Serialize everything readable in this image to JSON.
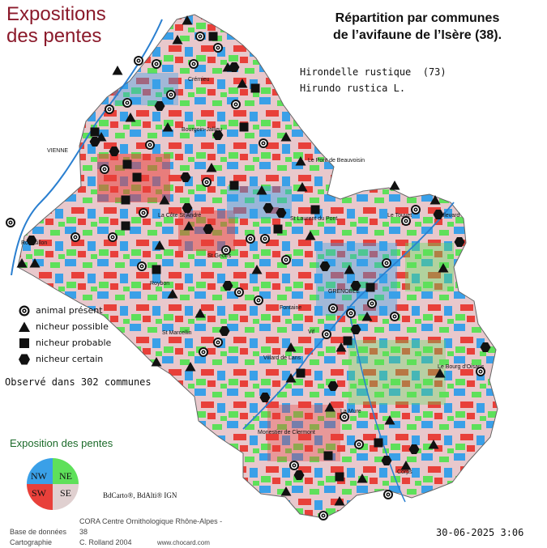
{
  "map_title": [
    "Expositions",
    "des pentes"
  ],
  "heading": [
    "Répartition par communes",
    "de l’avifaune de l’Isère (38)."
  ],
  "species": {
    "common_name": "Hirondelle rustique  (73)",
    "latin_name": "Hirundo rustica L."
  },
  "legend": [
    {
      "symbol": "circle-target",
      "label": "animal présent"
    },
    {
      "symbol": "triangle",
      "label": "nicheur possible"
    },
    {
      "symbol": "square",
      "label": "nicheur probable"
    },
    {
      "symbol": "hexagon",
      "label": "nicheur certain"
    }
  ],
  "observed": "Observé dans 302 communes",
  "slope_exposure": {
    "title": "Exposition des pentes",
    "quadrants": [
      {
        "label": "NW",
        "color": "#3aa0e8"
      },
      {
        "label": "NE",
        "color": "#5ee05a"
      },
      {
        "label": "SW",
        "color": "#e8403a"
      },
      {
        "label": "SE",
        "color": "#e0d0d0"
      }
    ]
  },
  "map_colors": {
    "blue": "#3aa0e8",
    "green": "#5ee05a",
    "red": "#e8403a",
    "pink": "#e8c8cc",
    "water": "#2a7fd0"
  },
  "credit": "BdCarto®, BdAlti® IGN",
  "footer": {
    "row1": [
      "Base de données",
      "CORA Centre Ornithologique Rhône-Alpes - 38"
    ],
    "row2": [
      "Cartographie",
      "C. Rolland 2004",
      "www.chocard.com"
    ]
  },
  "date": "30-06-2025 3:06",
  "towns": [
    "VIENNE",
    "Le Pont de Beauvoisin",
    "St Laurent du Pont",
    "Le Touvet",
    "GRENOBLE",
    "Fontaine",
    "Vif",
    "Villard de Lans",
    "Le Bourg d'Oisans",
    "Corps",
    "Monestier de Clermont",
    "St Marcellin",
    "Roybon",
    "La Côte St André",
    "Bourgoin-Jallieu",
    "Crémieu",
    "Allevard",
    "Roussillon",
    "St Geoirs",
    "La Mure"
  ]
}
